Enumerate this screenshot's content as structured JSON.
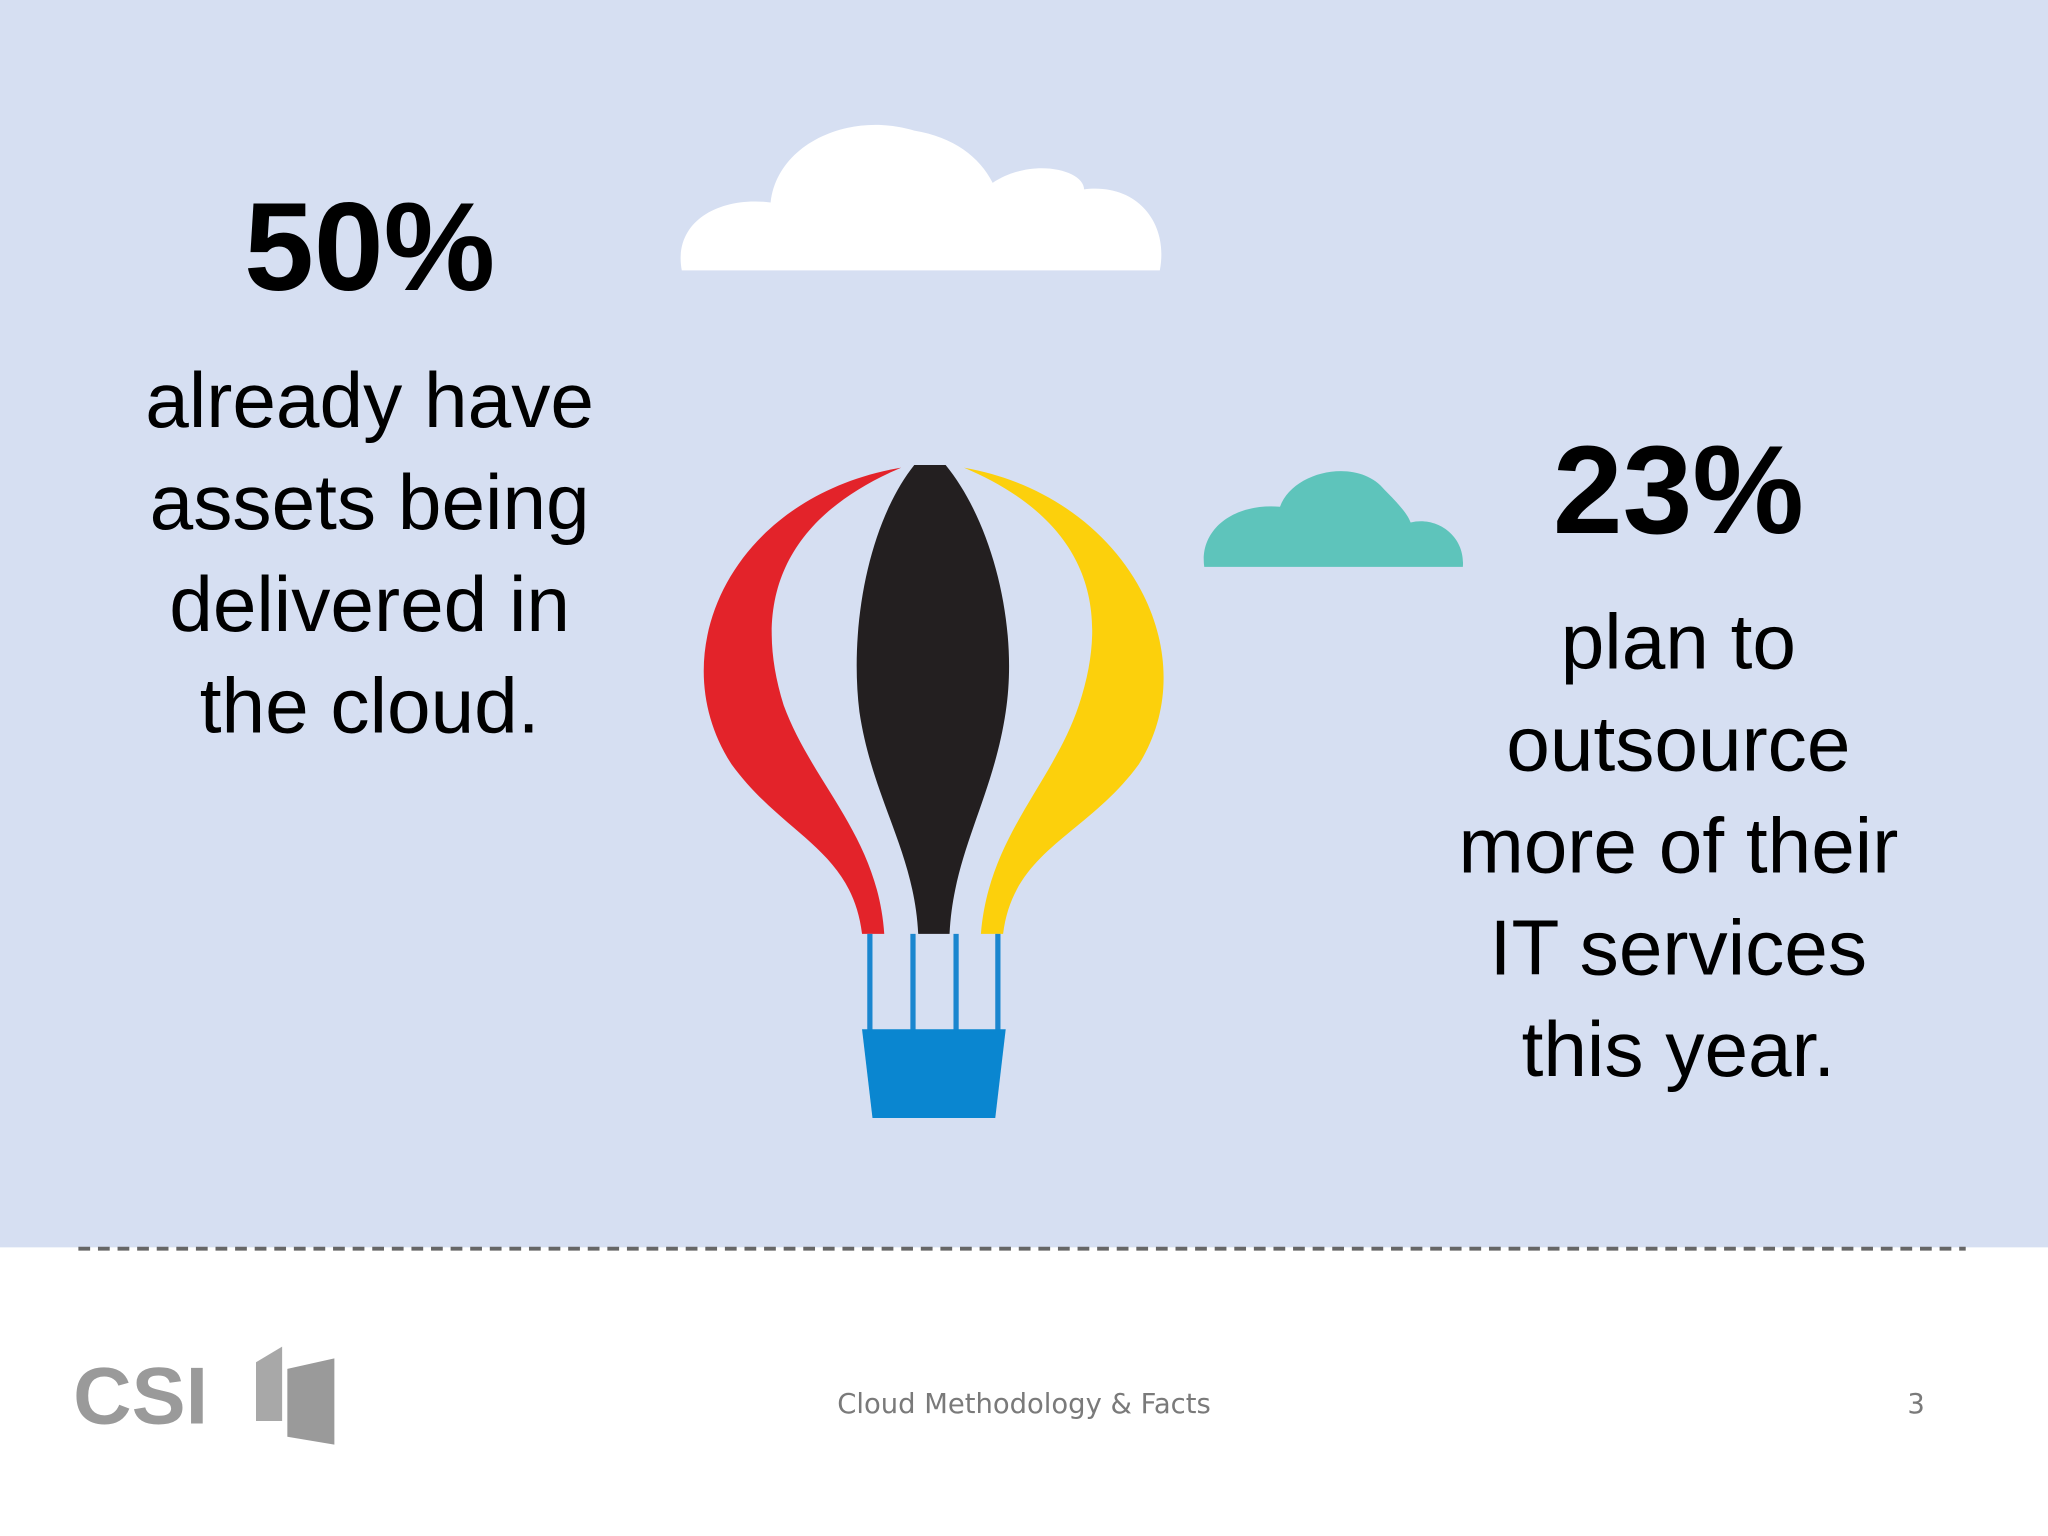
{
  "stats": [
    {
      "value": "50%",
      "text": [
        "already have",
        "assets being",
        "delivered in",
        "the cloud."
      ]
    },
    {
      "value": "23%",
      "text": [
        "plan to",
        "outsource",
        "more of their",
        "IT services",
        "this year."
      ]
    }
  ],
  "footer": {
    "logo": "CSI",
    "title": "Cloud Methodology & Facts",
    "page": "3"
  }
}
